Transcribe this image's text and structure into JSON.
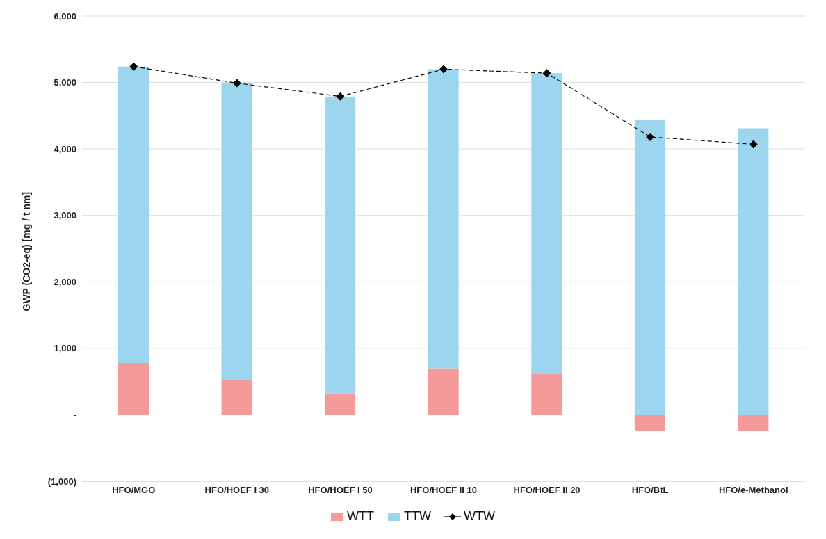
{
  "chart_data": {
    "type": "bar",
    "stacked": true,
    "ylabel": "GWP (CO2-eq) [mg / t nm]",
    "categories": [
      "HFO/MGO",
      "HFO/HOEF I  30",
      "HFO/HOEF I  50",
      "HFO/HOEF II  10",
      "HFO/HOEF II  20",
      "HFO/BtL",
      "HFO/e-Methanol"
    ],
    "series": [
      {
        "name": "WTT",
        "color": "#f49a9a",
        "values": [
          780,
          520,
          320,
          700,
          620,
          -240,
          -240
        ]
      },
      {
        "name": "TTW",
        "color": "#9bd6ee",
        "values": [
          4460,
          4470,
          4470,
          4500,
          4520,
          4430,
          4310
        ]
      },
      {
        "name": "WTW",
        "type": "line",
        "color": "#000000",
        "marker": "diamond",
        "line_style": "dashed",
        "values": [
          5240,
          4990,
          4790,
          5200,
          5140,
          4180,
          4070
        ]
      }
    ],
    "ylim": [
      -1000,
      6000
    ],
    "yticks": [
      {
        "value": -1000,
        "label": "(1,000)"
      },
      {
        "value": 0,
        "label": "-"
      },
      {
        "value": 1000,
        "label": "1,000"
      },
      {
        "value": 2000,
        "label": "2,000"
      },
      {
        "value": 3000,
        "label": "3,000"
      },
      {
        "value": 4000,
        "label": "4,000"
      },
      {
        "value": 5000,
        "label": "5,000"
      },
      {
        "value": 6000,
        "label": "6,000"
      }
    ],
    "grid": "y",
    "legend": "bottom"
  }
}
